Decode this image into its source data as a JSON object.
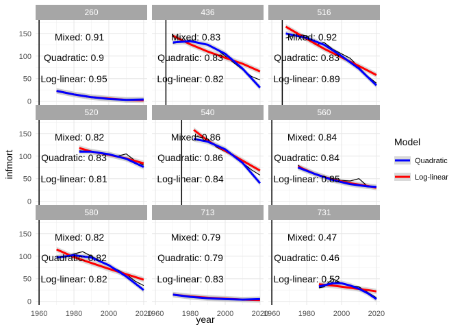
{
  "chart_data": {
    "type": "line",
    "xlabel": "year",
    "ylabel": "infmort",
    "xlim": [
      1958,
      2022
    ],
    "ylim": [
      -8,
      180
    ],
    "x_ticks": [
      "1960",
      "1980",
      "2000",
      "2020"
    ],
    "y_ticks": [
      "0",
      "50",
      "100",
      "150"
    ],
    "legend": {
      "title": "Model",
      "placement": "right",
      "entries": [
        {
          "name": "Quadratic",
          "color": "#0000ff"
        },
        {
          "name": "Log-linear",
          "color": "#ff0000"
        }
      ]
    },
    "colors": {
      "observed": "#000000",
      "quadratic": "#0000ff",
      "loglinear": "#ff0000",
      "ribbon": "#bfbfbf",
      "strip": "#a6a6a6"
    },
    "panels": [
      {
        "id": "260",
        "vline": 1960,
        "annotations": [
          "Mixed: 0.91",
          "Quadratic: 0.9",
          "Log-linear: 0.95"
        ],
        "observed": {
          "x": [
            1970,
            1980,
            1990,
            2000,
            2010,
            2020
          ],
          "y": [
            23,
            15,
            9,
            5,
            3,
            3
          ]
        },
        "quadratic": {
          "x": [
            1970,
            1980,
            1990,
            2000,
            2010,
            2020
          ],
          "y": [
            23,
            15,
            9,
            5,
            3,
            4
          ]
        },
        "loglinear": {
          "x": [
            1970,
            1980,
            1990,
            2000,
            2010,
            2020
          ],
          "y": [
            23,
            15,
            9,
            6,
            3,
            2
          ]
        }
      },
      {
        "id": "436",
        "vline": 1966,
        "annotations": [
          "Mixed: 0.83",
          "Quadratic: 0.83",
          "Log-linear: 0.82"
        ],
        "observed": {
          "x": [
            1970,
            1980,
            1990,
            1995,
            2000,
            2005,
            2010,
            2015,
            2020
          ],
          "y": [
            128,
            135,
            125,
            115,
            100,
            85,
            70,
            55,
            47
          ]
        },
        "quadratic": {
          "x": [
            1970,
            1980,
            1990,
            2000,
            2010,
            2020
          ],
          "y": [
            130,
            133,
            125,
            105,
            72,
            30
          ]
        },
        "loglinear": {
          "x": [
            1970,
            1980,
            1990,
            2000,
            2010,
            2020
          ],
          "y": [
            145,
            126,
            110,
            96,
            83,
            66
          ]
        }
      },
      {
        "id": "516",
        "vline": 1966,
        "annotations": [
          "Mixed: 0.92",
          "Quadratic: 0.83",
          "Log-linear: 0.89"
        ],
        "observed": {
          "x": [
            1968,
            1975,
            1980,
            1985,
            1990,
            1995,
            2000,
            2005,
            2010,
            2015,
            2020
          ],
          "y": [
            140,
            148,
            145,
            125,
            130,
            115,
            105,
            95,
            75,
            55,
            40
          ]
        },
        "quadratic": {
          "x": [
            1968,
            1980,
            1990,
            2000,
            2010,
            2020
          ],
          "y": [
            150,
            140,
            125,
            100,
            72,
            35
          ]
        },
        "loglinear": {
          "x": [
            1968,
            1980,
            1990,
            2000,
            2010,
            2020
          ],
          "y": [
            165,
            138,
            116,
            97,
            78,
            58
          ]
        }
      },
      {
        "id": "520",
        "vline": 1960,
        "annotations": [
          "Mixed: 0.82",
          "Quadratic: 0.83",
          "Log-linear: 0.81"
        ],
        "observed": {
          "x": [
            1983,
            1990,
            2000,
            2005,
            2010,
            2015,
            2020
          ],
          "y": [
            112,
            110,
            102,
            100,
            105,
            90,
            80
          ]
        },
        "quadratic": {
          "x": [
            1983,
            1990,
            2000,
            2010,
            2020
          ],
          "y": [
            110,
            110,
            104,
            94,
            76
          ]
        },
        "loglinear": {
          "x": [
            1983,
            1990,
            2000,
            2010,
            2020
          ],
          "y": [
            118,
            110,
            103,
            95,
            84
          ]
        }
      },
      {
        "id": "540",
        "vline": 1975,
        "annotations": [
          "Mixed: 0.86",
          "Quadratic: 0.86",
          "Log-linear: 0.84"
        ],
        "observed": {
          "x": [
            1982,
            1990,
            1995,
            2000,
            2005,
            2010,
            2015,
            2020
          ],
          "y": [
            145,
            138,
            120,
            110,
            100,
            85,
            70,
            58
          ]
        },
        "quadratic": {
          "x": [
            1982,
            1990,
            2000,
            2010,
            2020
          ],
          "y": [
            138,
            132,
            115,
            85,
            40
          ]
        },
        "loglinear": {
          "x": [
            1982,
            1990,
            2000,
            2010,
            2020
          ],
          "y": [
            158,
            134,
            112,
            90,
            68
          ]
        }
      },
      {
        "id": "560",
        "vline": 1960,
        "annotations": [
          "Mixed: 0.84",
          "Quadratic: 0.84",
          "Log-linear: 0.85"
        ],
        "observed": {
          "x": [
            1975,
            1980,
            1990,
            2000,
            2005,
            2010,
            2015,
            2020
          ],
          "y": [
            80,
            68,
            55,
            46,
            45,
            50,
            33,
            32
          ]
        },
        "quadratic": {
          "x": [
            1975,
            1985,
            1995,
            2005,
            2015,
            2020
          ],
          "y": [
            75,
            60,
            47,
            38,
            33,
            32
          ]
        },
        "loglinear": {
          "x": [
            1975,
            1985,
            1995,
            2005,
            2015,
            2020
          ],
          "y": [
            77,
            60,
            48,
            40,
            34,
            30
          ]
        }
      },
      {
        "id": "580",
        "vline": 1960,
        "annotations": [
          "Mixed: 0.82",
          "Quadratic: 0.82",
          "Log-linear: 0.82"
        ],
        "observed": {
          "x": [
            1970,
            1975,
            1980,
            1985,
            1990,
            1995,
            2000,
            2005,
            2010,
            2015,
            2020
          ],
          "y": [
            100,
            98,
            105,
            110,
            100,
            90,
            80,
            70,
            60,
            45,
            35
          ]
        },
        "quadratic": {
          "x": [
            1970,
            1980,
            1990,
            2000,
            2010,
            2020
          ],
          "y": [
            97,
            102,
            97,
            80,
            55,
            25
          ]
        },
        "loglinear": {
          "x": [
            1970,
            1980,
            1990,
            2000,
            2010,
            2020
          ],
          "y": [
            115,
            98,
            85,
            72,
            60,
            48
          ]
        }
      },
      {
        "id": "713",
        "vline": null,
        "annotations": [
          "Mixed: 0.79",
          "Quadratic: 0.79",
          "Log-linear: 0.83"
        ],
        "observed": {
          "x": [
            1970,
            1980,
            1990,
            2000,
            2010,
            2020
          ],
          "y": [
            14,
            10,
            7,
            5,
            4,
            4
          ]
        },
        "quadratic": {
          "x": [
            1970,
            1980,
            1990,
            2000,
            2010,
            2020
          ],
          "y": [
            15,
            10,
            7,
            5,
            4,
            5
          ]
        },
        "loglinear": {
          "x": [
            1970,
            1980,
            1990,
            2000,
            2010,
            2020
          ],
          "y": [
            15,
            11,
            8,
            6,
            4,
            3
          ]
        }
      },
      {
        "id": "731",
        "vline": 1960,
        "annotations": [
          "Mixed: 0.47",
          "Quadratic: 0.46",
          "Log-linear: 0.52"
        ],
        "observed": {
          "x": [
            1987,
            1990,
            1995,
            2000,
            2005,
            2010,
            2015,
            2020
          ],
          "y": [
            30,
            32,
            50,
            40,
            35,
            32,
            20,
            8
          ]
        },
        "quadratic": {
          "x": [
            1987,
            1995,
            2000,
            2005,
            2010,
            2015,
            2020
          ],
          "y": [
            33,
            40,
            40,
            35,
            28,
            18,
            5
          ]
        },
        "loglinear": {
          "x": [
            1987,
            1995,
            2005,
            2015,
            2020
          ],
          "y": [
            38,
            35,
            30,
            25,
            22
          ]
        }
      }
    ]
  }
}
